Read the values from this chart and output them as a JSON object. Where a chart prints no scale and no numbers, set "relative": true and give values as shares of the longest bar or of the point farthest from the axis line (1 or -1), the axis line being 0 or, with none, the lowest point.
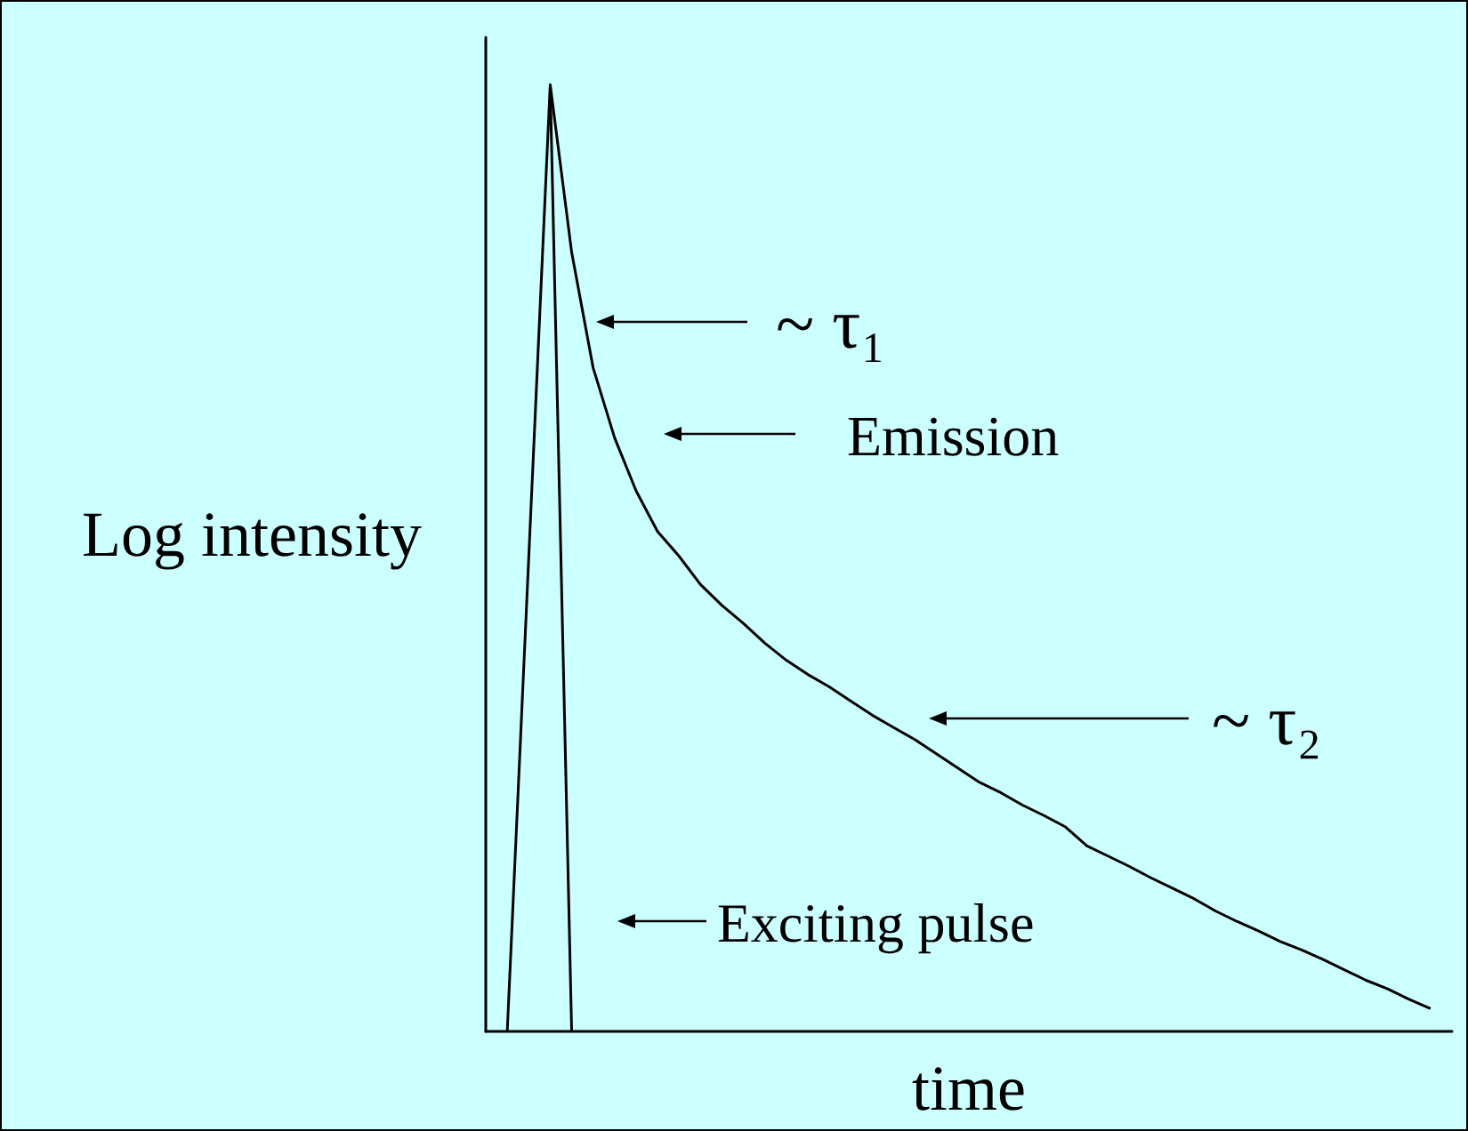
{
  "chart_data": {
    "type": "line",
    "relative": true,
    "xlabel": "time",
    "ylabel": "Log intensity",
    "categories": [
      null,
      null,
      null,
      null,
      null,
      null,
      null,
      null,
      null,
      null,
      null,
      null,
      null,
      null,
      null,
      null,
      null,
      null,
      null,
      null,
      null,
      null,
      null,
      null,
      null,
      null,
      null,
      null,
      null,
      null,
      null,
      null,
      null,
      null,
      null,
      null,
      null,
      null,
      null,
      null,
      null,
      null,
      null,
      null,
      null,
      null
    ],
    "series": [
      {
        "color": "#000000",
        "values": [
          null,
          0,
          0.5,
          1,
          0,
          null,
          null,
          null,
          null,
          null,
          null,
          null,
          null,
          null,
          null,
          null,
          null,
          null,
          null,
          null,
          null,
          null,
          null,
          null,
          null,
          null,
          null,
          null,
          null,
          null,
          null,
          null,
          null,
          null,
          null,
          null,
          null,
          null,
          null,
          null,
          null,
          null,
          null,
          null,
          null,
          null
        ]
      },
      {
        "color": "#000000",
        "values": [
          null,
          null,
          null,
          1,
          0.823,
          0.701,
          0.627,
          0.571,
          0.528,
          0.502,
          0.472,
          0.45,
          0.431,
          0.41,
          0.392,
          0.377,
          0.364,
          0.349,
          0.334,
          0.321,
          0.308,
          0.293,
          0.278,
          0.263,
          0.252,
          0.239,
          0.228,
          0.216,
          0.196,
          0.185,
          0.174,
          0.162,
          0.151,
          0.14,
          0.127,
          0.116,
          0.106,
          0.095,
          0.086,
          0.076,
          0.065,
          0.054,
          0.045,
          0.034,
          0.024,
          null
        ]
      }
    ],
    "annotations": [
      "~ τ₁",
      "Emission",
      "~ τ₂",
      "Exciting pulse"
    ],
    "grid": false,
    "marker": "none"
  }
}
